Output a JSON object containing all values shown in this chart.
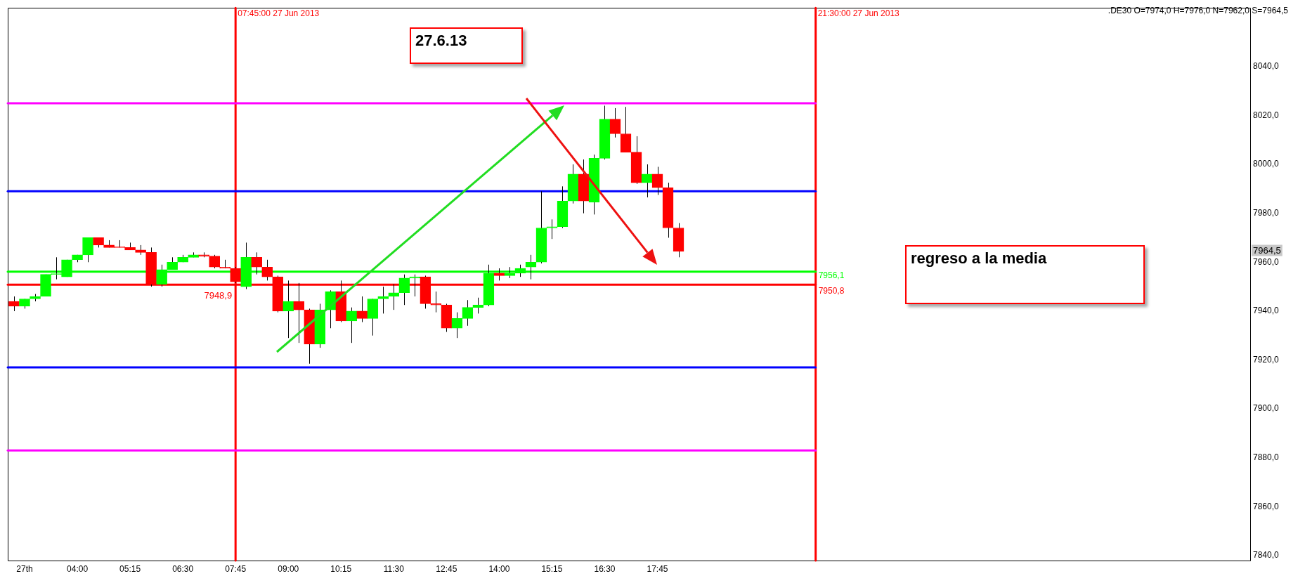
{
  "chart_data": {
    "type": "candlestick",
    "x": [
      "2013-06-27T02:30",
      "2013-06-27T02:45",
      "2013-06-27T03:00",
      "2013-06-27T03:15",
      "2013-06-27T03:30",
      "2013-06-27T03:45",
      "2013-06-27T04:00",
      "2013-06-27T04:15",
      "2013-06-27T04:30",
      "2013-06-27T04:45",
      "2013-06-27T05:00",
      "2013-06-27T05:15",
      "2013-06-27T05:30",
      "2013-06-27T05:45",
      "2013-06-27T06:00",
      "2013-06-27T06:15",
      "2013-06-27T06:30",
      "2013-06-27T06:45",
      "2013-06-27T07:00",
      "2013-06-27T07:15",
      "2013-06-27T07:30",
      "2013-06-27T07:45",
      "2013-06-27T08:00",
      "2013-06-27T08:15",
      "2013-06-27T08:30",
      "2013-06-27T08:45",
      "2013-06-27T09:00",
      "2013-06-27T09:15",
      "2013-06-27T09:30",
      "2013-06-27T09:45",
      "2013-06-27T10:00",
      "2013-06-27T10:15",
      "2013-06-27T10:30",
      "2013-06-27T10:45",
      "2013-06-27T11:00",
      "2013-06-27T11:15",
      "2013-06-27T11:30",
      "2013-06-27T11:45",
      "2013-06-27T12:00",
      "2013-06-27T12:15",
      "2013-06-27T12:30",
      "2013-06-27T12:45",
      "2013-06-27T13:00",
      "2013-06-27T13:15",
      "2013-06-27T13:30",
      "2013-06-27T13:45",
      "2013-06-27T14:00",
      "2013-06-27T14:15",
      "2013-06-27T14:30",
      "2013-06-27T14:45",
      "2013-06-27T15:00",
      "2013-06-27T15:15",
      "2013-06-27T15:30",
      "2013-06-27T15:45",
      "2013-06-27T16:00",
      "2013-06-27T16:15",
      "2013-06-27T16:30",
      "2013-06-27T16:45",
      "2013-06-27T17:00",
      "2013-06-27T17:15",
      "2013-06-27T17:30",
      "2013-06-27T17:45",
      "2013-06-27T18:00",
      "2013-06-27T18:15"
    ],
    "ohlc": [
      [
        7944,
        7946,
        7940,
        7942
      ],
      [
        7942,
        7945,
        7941,
        7945
      ],
      [
        7945,
        7947,
        7944,
        7946
      ],
      [
        7946,
        7955,
        7946,
        7955
      ],
      [
        7955,
        7962,
        7953,
        7955
      ],
      [
        7954,
        7961,
        7954,
        7961
      ],
      [
        7961,
        7963,
        7960,
        7963
      ],
      [
        7963,
        7970,
        7960,
        7970
      ],
      [
        7970,
        7970,
        7966,
        7967
      ],
      [
        7967,
        7969,
        7966,
        7966
      ],
      [
        7966,
        7969,
        7966,
        7966
      ],
      [
        7966,
        7968,
        7965,
        7965
      ],
      [
        7965,
        7967,
        7963,
        7964
      ],
      [
        7964,
        7966,
        7950,
        7951
      ],
      [
        7951,
        7959,
        7950,
        7957
      ],
      [
        7957,
        7962,
        7957,
        7960
      ],
      [
        7960,
        7963,
        7960,
        7962
      ],
      [
        7962,
        7964,
        7962,
        7963
      ],
      [
        7963,
        7964,
        7962,
        7962.5
      ],
      [
        7962.5,
        7963,
        7957.5,
        7958
      ],
      [
        7958,
        7961,
        7957.5,
        7957.5
      ],
      [
        7957.5,
        7958,
        7951.5,
        7952
      ],
      [
        7950,
        7968,
        7949,
        7962
      ],
      [
        7962,
        7964,
        7955,
        7958
      ],
      [
        7958,
        7961,
        7952.5,
        7954
      ],
      [
        7954,
        7954.5,
        7939.5,
        7940
      ],
      [
        7940,
        7952.5,
        7929,
        7944
      ],
      [
        7944,
        7951.5,
        7927,
        7940.5
      ],
      [
        7940.5,
        7941,
        7918.5,
        7926.5
      ],
      [
        7926.5,
        7943,
        7925,
        7940.5
      ],
      [
        7940.5,
        7948.5,
        7933,
        7948
      ],
      [
        7948,
        7952.5,
        7935.5,
        7936
      ],
      [
        7936,
        7941.5,
        7927,
        7940
      ],
      [
        7940,
        7946,
        7935.5,
        7937
      ],
      [
        7937,
        7945,
        7930,
        7945
      ],
      [
        7945,
        7950,
        7939,
        7946
      ],
      [
        7946,
        7951,
        7940.5,
        7947.5
      ],
      [
        7947.5,
        7955,
        7942.5,
        7953.5
      ],
      [
        7953.5,
        7955,
        7946,
        7954
      ],
      [
        7954,
        7954.5,
        7941,
        7943
      ],
      [
        7943,
        7948,
        7939.5,
        7942.5
      ],
      [
        7942.5,
        7943,
        7931.5,
        7933
      ],
      [
        7933,
        7939.5,
        7929,
        7937
      ],
      [
        7937,
        7944.5,
        7934,
        7941.5
      ],
      [
        7941.5,
        7945.5,
        7939,
        7942.5
      ],
      [
        7942.5,
        7959,
        7942,
        7955.5
      ],
      [
        7955.5,
        7957.5,
        7952.5,
        7954.5
      ],
      [
        7954.5,
        7958,
        7953.5,
        7955.5
      ],
      [
        7955.5,
        7959,
        7954,
        7957.5
      ],
      [
        7958,
        7963,
        7953,
        7960
      ],
      [
        7960,
        7989,
        7959.5,
        7974
      ],
      [
        7974,
        7977.5,
        7969.5,
        7974.5
      ],
      [
        7974.5,
        7991,
        7974,
        7985
      ],
      [
        7985,
        8000,
        7984,
        7996
      ],
      [
        7996,
        8002,
        7980,
        7985
      ],
      [
        7984.5,
        8004,
        7979.5,
        8002.5
      ],
      [
        8002.5,
        8024,
        8002,
        8018.5
      ],
      [
        8018.5,
        8023,
        8011,
        8012.5
      ],
      [
        8012.5,
        8023.5,
        8005,
        8005
      ],
      [
        8005,
        8011.5,
        7992,
        7992.5
      ],
      [
        7992.5,
        8000,
        7986.5,
        7996
      ],
      [
        7996,
        7999,
        7987.5,
        7990.5
      ],
      [
        7990.5,
        7992.5,
        7970,
        7974
      ],
      [
        7974,
        7976,
        7962,
        7964.5
      ]
    ],
    "colors": [
      "#ff0000",
      "#00ff00",
      "#00ff00",
      "#00ff00",
      "#00ff00",
      "#00ff00",
      "#00ff00",
      "#00ff00",
      "#ff0000",
      "#ff0000",
      "#ff0000",
      "#ff0000",
      "#ff0000",
      "#ff0000",
      "#00ff00",
      "#00ff00",
      "#00ff00",
      "#00ff00",
      "#ff0000",
      "#ff0000",
      "#ff0000",
      "#ff0000",
      "#00ff00",
      "#ff0000",
      "#ff0000",
      "#ff0000",
      "#00ff00",
      "#ff0000",
      "#ff0000",
      "#00ff00",
      "#00ff00",
      "#ff0000",
      "#00ff00",
      "#ff0000",
      "#00ff00",
      "#00ff00",
      "#00ff00",
      "#00ff00",
      "#00ff00",
      "#ff0000",
      "#ff0000",
      "#ff0000",
      "#00ff00",
      "#00ff00",
      "#00ff00",
      "#00ff00",
      "#ff0000",
      "#00ff00",
      "#00ff00",
      "#00ff00",
      "#00ff00",
      "#00ff00",
      "#00ff00",
      "#00ff00",
      "#ff0000",
      "#00ff00",
      "#00ff00",
      "#ff0000",
      "#ff0000",
      "#ff0000",
      "#00ff00",
      "#ff0000",
      "#ff0000",
      "#ff0000"
    ],
    "xlim": [
      "2013-06-27T02:21",
      "2013-06-28T07:48"
    ],
    "xticks": [
      {
        "value": "2013-06-27T02:45",
        "label": "27th"
      },
      {
        "value": "2013-06-27T04:00",
        "label": "04:00"
      },
      {
        "value": "2013-06-27T05:15",
        "label": "05:15"
      },
      {
        "value": "2013-06-27T06:30",
        "label": "06:30"
      },
      {
        "value": "2013-06-27T07:45",
        "label": "07:45"
      },
      {
        "value": "2013-06-27T09:00",
        "label": "09:00"
      },
      {
        "value": "2013-06-27T10:15",
        "label": "10:15"
      },
      {
        "value": "2013-06-27T11:30",
        "label": "11:30"
      },
      {
        "value": "2013-06-27T12:45",
        "label": "12:45"
      },
      {
        "value": "2013-06-27T14:00",
        "label": "14:00"
      },
      {
        "value": "2013-06-27T15:15",
        "label": "15:15"
      },
      {
        "value": "2013-06-27T16:30",
        "label": "16:30"
      },
      {
        "value": "2013-06-27T17:45",
        "label": "17:45"
      }
    ],
    "ylim": [
      7838,
      8064
    ],
    "yticks": [
      {
        "value": 7840,
        "label": "7840,0"
      },
      {
        "value": 7860,
        "label": "7860,0"
      },
      {
        "value": 7880,
        "label": "7880,0"
      },
      {
        "value": 7900,
        "label": "7900,0"
      },
      {
        "value": 7920,
        "label": "7920,0"
      },
      {
        "value": 7940,
        "label": "7940,0"
      },
      {
        "value": 7960,
        "label": "7960,0"
      },
      {
        "value": 7980,
        "label": "7980,0"
      },
      {
        "value": 8000,
        "label": "8000,0"
      },
      {
        "value": 8020,
        "label": "8020,0"
      },
      {
        "value": 8040,
        "label": "8040,0"
      }
    ],
    "grid": false,
    "legend": false,
    "ref_lines": [
      {
        "axis": "x",
        "value": "2013-06-27T07:45",
        "label": "07:45:00 27 Jun 2013",
        "color": "#ff0000"
      },
      {
        "axis": "x",
        "value": "2013-06-27T21:30",
        "label": "21:30:00 27 Jun 2013",
        "color": "#ff0000"
      },
      {
        "axis": "y",
        "value": 8025,
        "color": "#ff00ff"
      },
      {
        "axis": "y",
        "value": 7883,
        "color": "#ff00ff"
      },
      {
        "axis": "y",
        "value": 7989,
        "color": "#0000ff"
      },
      {
        "axis": "y",
        "value": 7917,
        "color": "#0000ff"
      },
      {
        "axis": "y",
        "value": 7956.1,
        "label": "7956,1",
        "color": "#00ff00"
      },
      {
        "axis": "y",
        "value": 7950.8,
        "label": "7950,8",
        "color": "#ff0000"
      }
    ],
    "annotations": [
      "27.6.13",
      "regreso a la media",
      ".DE30 O=7974,0 H=7976,0 N=7962,0 S=7964,5",
      {
        "text": "7948,9",
        "x": "2013-06-27T07:45",
        "y": 7948.9
      },
      {
        "text": "7964,5",
        "y": 7964.5
      }
    ]
  }
}
